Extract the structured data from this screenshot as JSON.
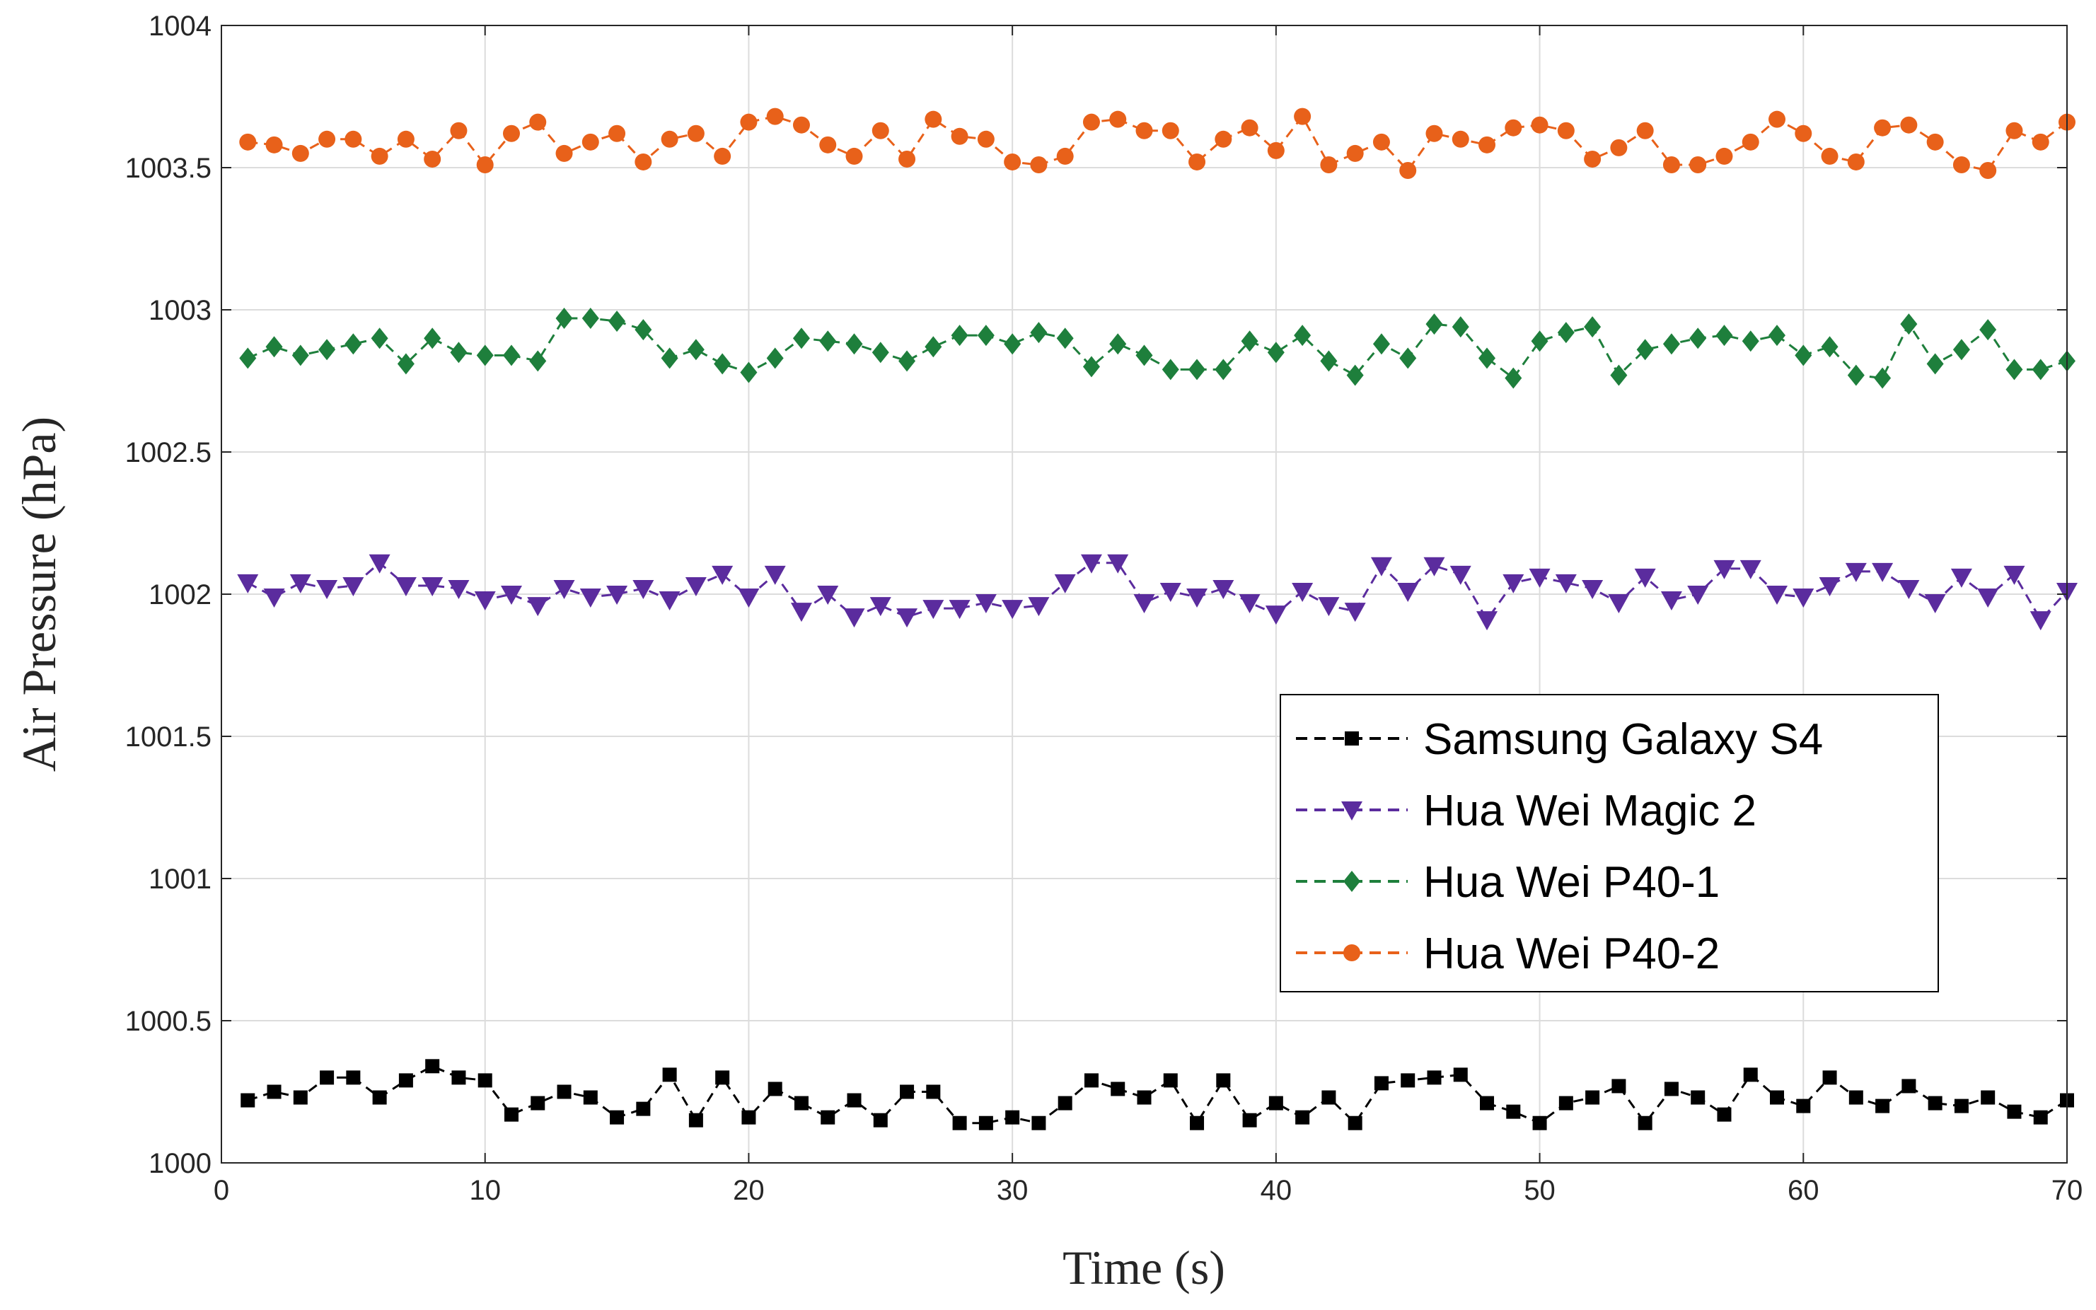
{
  "chart_data": {
    "type": "line",
    "title": "",
    "xlabel": "Time (s)",
    "ylabel": "Air Pressure (hPa)",
    "xlim": [
      0,
      70
    ],
    "ylim": [
      1000,
      1004
    ],
    "xticks": [
      0,
      10,
      20,
      30,
      40,
      50,
      60,
      70
    ],
    "yticks": [
      1000,
      1000.5,
      1001,
      1001.5,
      1002,
      1002.5,
      1003,
      1003.5,
      1004
    ],
    "xtick_labels": [
      "0",
      "10",
      "20",
      "30",
      "40",
      "50",
      "60",
      "70"
    ],
    "ytick_labels": [
      "1000",
      "1000.5",
      "1001",
      "1001.5",
      "1002",
      "1002.5",
      "1003",
      "1003.5",
      "1004"
    ],
    "grid": true,
    "legend_position": "right, lower-middle",
    "x": [
      1,
      2,
      3,
      4,
      5,
      6,
      7,
      8,
      9,
      10,
      11,
      12,
      13,
      14,
      15,
      16,
      17,
      18,
      19,
      20,
      21,
      22,
      23,
      24,
      25,
      26,
      27,
      28,
      29,
      30,
      31,
      32,
      33,
      34,
      35,
      36,
      37,
      38,
      39,
      40,
      41,
      42,
      43,
      44,
      45,
      46,
      47,
      48,
      49,
      50,
      51,
      52,
      53,
      54,
      55,
      56,
      57,
      58,
      59,
      60,
      61,
      62,
      63,
      64,
      65,
      66,
      67,
      68,
      69,
      70
    ],
    "series": [
      {
        "name": "Samsung Galaxy S4",
        "color": "#000000",
        "marker": "square",
        "values": [
          1000.22,
          1000.25,
          1000.23,
          1000.3,
          1000.3,
          1000.23,
          1000.29,
          1000.34,
          1000.3,
          1000.29,
          1000.17,
          1000.21,
          1000.25,
          1000.23,
          1000.16,
          1000.19,
          1000.31,
          1000.15,
          1000.3,
          1000.16,
          1000.26,
          1000.21,
          1000.16,
          1000.22,
          1000.15,
          1000.25,
          1000.25,
          1000.14,
          1000.14,
          1000.16,
          1000.14,
          1000.21,
          1000.29,
          1000.26,
          1000.23,
          1000.29,
          1000.14,
          1000.29,
          1000.15,
          1000.21,
          1000.16,
          1000.23,
          1000.14,
          1000.28,
          1000.29,
          1000.3,
          1000.31,
          1000.21,
          1000.18,
          1000.14,
          1000.21,
          1000.23,
          1000.27,
          1000.14,
          1000.26,
          1000.23,
          1000.17,
          1000.31,
          1000.23,
          1000.2,
          1000.3,
          1000.23,
          1000.2,
          1000.27,
          1000.21,
          1000.2,
          1000.23,
          1000.18,
          1000.16,
          1000.22
        ]
      },
      {
        "name": "Hua Wei Magic 2",
        "color": "#5b2c9e",
        "marker": "triangle-down",
        "values": [
          1002.04,
          1001.99,
          1002.04,
          1002.02,
          1002.03,
          1002.11,
          1002.03,
          1002.03,
          1002.02,
          1001.98,
          1002.0,
          1001.96,
          1002.02,
          1001.99,
          1002.0,
          1002.02,
          1001.98,
          1002.03,
          1002.07,
          1001.99,
          1002.07,
          1001.94,
          1002.0,
          1001.92,
          1001.96,
          1001.92,
          1001.95,
          1001.95,
          1001.97,
          1001.95,
          1001.96,
          1002.04,
          1002.11,
          1002.11,
          1001.97,
          1002.01,
          1001.99,
          1002.02,
          1001.97,
          1001.93,
          1002.01,
          1001.96,
          1001.94,
          1002.1,
          1002.01,
          1002.1,
          1002.07,
          1001.91,
          1002.04,
          1002.06,
          1002.04,
          1002.02,
          1001.97,
          1002.06,
          1001.98,
          1002.0,
          1002.09,
          1002.09,
          1002.0,
          1001.99,
          1002.03,
          1002.08,
          1002.08,
          1002.02,
          1001.97,
          1002.06,
          1001.99,
          1002.07,
          1001.91,
          1002.01
        ]
      },
      {
        "name": "Hua Wei P40-1",
        "color": "#1e7f3c",
        "marker": "diamond",
        "values": [
          1002.83,
          1002.87,
          1002.84,
          1002.86,
          1002.88,
          1002.9,
          1002.81,
          1002.9,
          1002.85,
          1002.84,
          1002.84,
          1002.82,
          1002.97,
          1002.97,
          1002.96,
          1002.93,
          1002.83,
          1002.86,
          1002.81,
          1002.78,
          1002.83,
          1002.9,
          1002.89,
          1002.88,
          1002.85,
          1002.82,
          1002.87,
          1002.91,
          1002.91,
          1002.88,
          1002.92,
          1002.9,
          1002.8,
          1002.88,
          1002.84,
          1002.79,
          1002.79,
          1002.79,
          1002.89,
          1002.85,
          1002.91,
          1002.82,
          1002.77,
          1002.88,
          1002.83,
          1002.95,
          1002.94,
          1002.83,
          1002.76,
          1002.89,
          1002.92,
          1002.94,
          1002.77,
          1002.86,
          1002.88,
          1002.9,
          1002.91,
          1002.89,
          1002.91,
          1002.84,
          1002.87,
          1002.77,
          1002.76,
          1002.95,
          1002.81,
          1002.86,
          1002.93,
          1002.79,
          1002.79,
          1002.82
        ]
      },
      {
        "name": "Hua Wei P40-2",
        "color": "#e8611a",
        "marker": "circle",
        "values": [
          1003.59,
          1003.58,
          1003.55,
          1003.6,
          1003.6,
          1003.54,
          1003.6,
          1003.53,
          1003.63,
          1003.51,
          1003.62,
          1003.66,
          1003.55,
          1003.59,
          1003.62,
          1003.52,
          1003.6,
          1003.62,
          1003.54,
          1003.66,
          1003.68,
          1003.65,
          1003.58,
          1003.54,
          1003.63,
          1003.53,
          1003.67,
          1003.61,
          1003.6,
          1003.52,
          1003.51,
          1003.54,
          1003.66,
          1003.67,
          1003.63,
          1003.63,
          1003.52,
          1003.6,
          1003.64,
          1003.56,
          1003.68,
          1003.51,
          1003.55,
          1003.59,
          1003.49,
          1003.62,
          1003.6,
          1003.58,
          1003.64,
          1003.65,
          1003.63,
          1003.53,
          1003.57,
          1003.63,
          1003.51,
          1003.51,
          1003.54,
          1003.59,
          1003.67,
          1003.62,
          1003.54,
          1003.52,
          1003.64,
          1003.65,
          1003.59,
          1003.51,
          1003.49,
          1003.63,
          1003.59,
          1003.66
        ]
      }
    ]
  }
}
